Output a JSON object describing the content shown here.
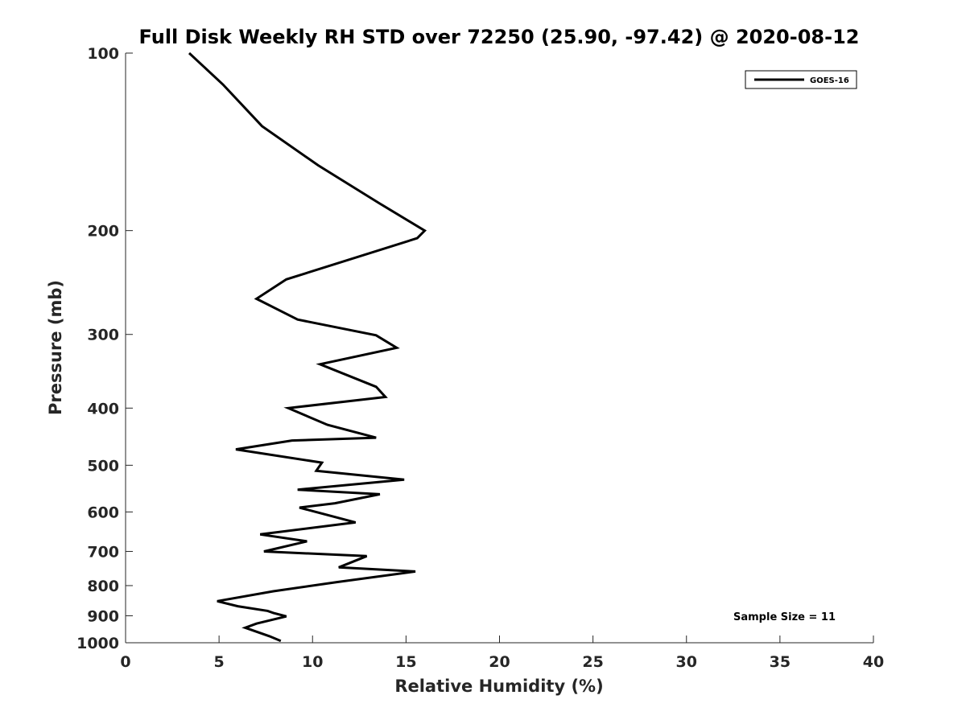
{
  "chart_data": {
    "type": "line",
    "title": "Full Disk Weekly RH STD over 72250 (25.90, -97.42) @ 2020-08-12",
    "xlabel": "Relative Humidity (%)",
    "ylabel": "Pressure (mb)",
    "xlim": [
      0,
      40
    ],
    "ylim": [
      100,
      1000
    ],
    "y_scale": "log",
    "y_reversed": true,
    "grid": false,
    "x_ticks": [
      0,
      5,
      10,
      15,
      20,
      25,
      30,
      35,
      40
    ],
    "x_tick_labels": [
      "0",
      "5",
      "10",
      "15",
      "20",
      "25",
      "30",
      "35",
      "40"
    ],
    "y_ticks": [
      100,
      200,
      300,
      400,
      500,
      600,
      700,
      800,
      900,
      1000
    ],
    "y_tick_labels": [
      "100",
      "200",
      "300",
      "400",
      "500",
      "600",
      "700",
      "800",
      "900",
      "1000"
    ],
    "legend": {
      "position": "top-right",
      "entries": [
        "GOES-16"
      ]
    },
    "annotation": "Sample Size = 11",
    "series": [
      {
        "name": "GOES-16",
        "color": "#000000",
        "x": [
          3.4,
          5.2,
          7.3,
          10.3,
          13.6,
          16.0,
          15.6,
          8.6,
          7.0,
          9.2,
          13.4,
          14.5,
          10.4,
          13.4,
          13.9,
          8.7,
          10.8,
          13.4,
          8.9,
          5.9,
          10.5,
          10.2,
          14.9,
          9.2,
          13.6,
          11.2,
          9.3,
          12.3,
          7.2,
          9.7,
          7.4,
          12.9,
          11.4,
          15.5,
          11.3,
          7.9,
          4.9,
          6.0,
          7.6,
          7.9,
          8.6,
          7.0,
          6.4,
          7.7,
          8.3
        ],
        "y": [
          100,
          113,
          133,
          155,
          180,
          200,
          206,
          242,
          261,
          283,
          301,
          316,
          337,
          368,
          383,
          400,
          427,
          449,
          454,
          470,
          495,
          511,
          529,
          550,
          560,
          580,
          590,
          625,
          655,
          673,
          700,
          713,
          745,
          757,
          789,
          818,
          850,
          867,
          883,
          890,
          902,
          928,
          943,
          975,
          993
        ]
      }
    ]
  }
}
